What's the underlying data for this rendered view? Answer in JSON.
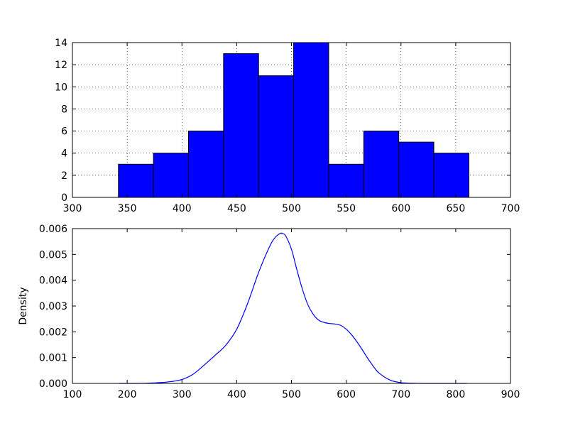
{
  "chart_data": [
    {
      "type": "bar",
      "subtype": "histogram",
      "bin_edges": [
        342,
        374,
        406,
        438,
        470,
        502,
        534,
        566,
        598,
        630,
        662
      ],
      "values": [
        3,
        4,
        6,
        13,
        11,
        14,
        3,
        6,
        5,
        4
      ],
      "xlim": [
        300,
        700
      ],
      "ylim": [
        0,
        14
      ],
      "xticks": [
        "300",
        "350",
        "400",
        "450",
        "500",
        "550",
        "600",
        "650",
        "700"
      ],
      "yticks": [
        "0",
        "2",
        "4",
        "6",
        "8",
        "10",
        "12",
        "14"
      ],
      "grid": true,
      "bar_color": "#0000ff",
      "edge_color": "#000000"
    },
    {
      "type": "line",
      "subtype": "density",
      "ylabel": "Density",
      "x": [
        185,
        200,
        220,
        240,
        260,
        280,
        300,
        320,
        340,
        360,
        380,
        400,
        420,
        440,
        460,
        470,
        480,
        485,
        490,
        500,
        510,
        520,
        530,
        540,
        550,
        560,
        570,
        580,
        590,
        600,
        610,
        620,
        630,
        640,
        650,
        660,
        680,
        700,
        720,
        740,
        760,
        780,
        800,
        820
      ],
      "y": [
        0.0,
        0.0,
        0.0,
        1e-05,
        3e-05,
        7e-05,
        0.00015,
        0.00035,
        0.0007,
        0.00108,
        0.00148,
        0.0021,
        0.0031,
        0.0043,
        0.0053,
        0.00565,
        0.00582,
        0.0058,
        0.0057,
        0.0052,
        0.0044,
        0.00365,
        0.00305,
        0.00267,
        0.00245,
        0.00236,
        0.00232,
        0.0023,
        0.00225,
        0.0021,
        0.00188,
        0.0016,
        0.00128,
        0.00095,
        0.00065,
        0.0004,
        0.00013,
        3e-05,
        1e-05,
        0.0,
        0.0,
        0.0,
        0.0,
        0.0
      ],
      "xlim": [
        100,
        900
      ],
      "ylim": [
        0,
        0.006
      ],
      "xticks": [
        "100",
        "200",
        "300",
        "400",
        "500",
        "600",
        "700",
        "800",
        "900"
      ],
      "yticks": [
        "0.000",
        "0.001",
        "0.002",
        "0.003",
        "0.004",
        "0.005",
        "0.006"
      ],
      "grid": false,
      "line_color": "#0000ff"
    }
  ]
}
